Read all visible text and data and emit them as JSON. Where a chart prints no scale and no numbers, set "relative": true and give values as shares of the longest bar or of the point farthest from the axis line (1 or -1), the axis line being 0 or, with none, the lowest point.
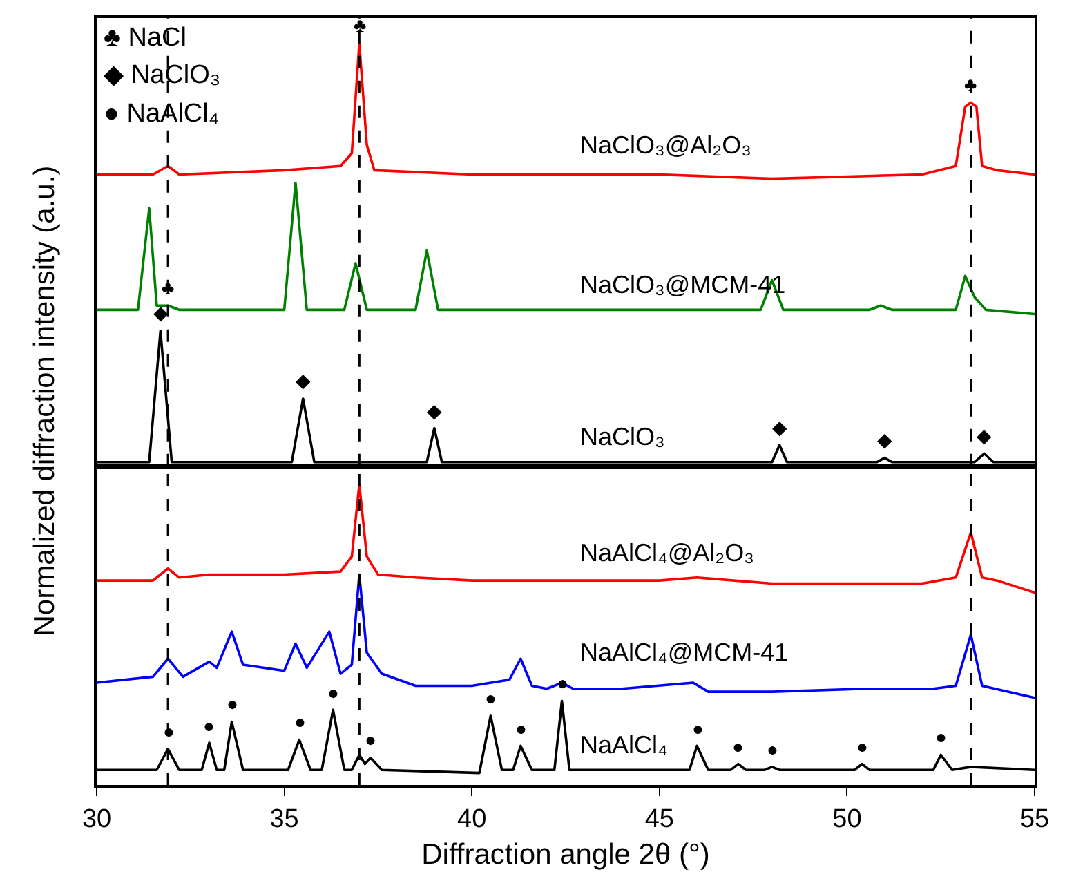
{
  "chart_data": [
    {
      "type": "line",
      "relative": true,
      "xlim": [
        30,
        55
      ],
      "tick_labels": false,
      "grid": false,
      "legend": false,
      "line_style": "solid",
      "ylabel": "Normalized diffraction intensity (a.u.)",
      "series": [
        {
          "name": "NaClO₃@Al₂O₃",
          "color": "#ff0000",
          "x": [
            30,
            31.5,
            31.9,
            32.2,
            35,
            36.5,
            36.8,
            37.0,
            37.2,
            37.4,
            40,
            45,
            48,
            52,
            52.9,
            53.15,
            53.3,
            53.45,
            53.6,
            54,
            55
          ],
          "values": [
            0.69,
            0.69,
            0.71,
            0.69,
            0.7,
            0.71,
            0.74,
            1.0,
            0.76,
            0.7,
            0.69,
            0.69,
            0.68,
            0.69,
            0.71,
            0.85,
            0.86,
            0.85,
            0.71,
            0.7,
            0.69
          ]
        },
        {
          "name": "NaClO₃@MCM-41",
          "color": "#008000",
          "x": [
            30,
            31.1,
            31.4,
            31.6,
            31.9,
            32.2,
            35.0,
            35.3,
            35.6,
            36.6,
            36.9,
            37.2,
            38.5,
            38.8,
            39.1,
            40,
            45,
            47.7,
            48.0,
            48.3,
            50.6,
            50.9,
            51.2,
            52.9,
            53.15,
            53.4,
            53.7,
            55
          ],
          "values": [
            0.37,
            0.37,
            0.61,
            0.38,
            0.38,
            0.37,
            0.37,
            0.67,
            0.37,
            0.37,
            0.48,
            0.37,
            0.37,
            0.51,
            0.37,
            0.37,
            0.37,
            0.37,
            0.44,
            0.37,
            0.37,
            0.38,
            0.37,
            0.37,
            0.45,
            0.4,
            0.37,
            0.36
          ]
        },
        {
          "name": "NaClO₃",
          "color": "#000000",
          "x": [
            30,
            31.4,
            31.7,
            32.0,
            35.2,
            35.5,
            35.8,
            38.8,
            39.0,
            39.2,
            48.0,
            48.2,
            48.4,
            50.8,
            51.0,
            51.2,
            53.4,
            53.66,
            53.9,
            55
          ],
          "values": [
            0.01,
            0.01,
            0.32,
            0.01,
            0.01,
            0.16,
            0.01,
            0.01,
            0.09,
            0.01,
            0.01,
            0.05,
            0.01,
            0.01,
            0.02,
            0.01,
            0.01,
            0.03,
            0.01,
            0.01
          ]
        }
      ],
      "ref_lines": [
        {
          "axis": "x",
          "value": 31.9,
          "color": "#000000",
          "line_style": "dashed"
        },
        {
          "axis": "x",
          "value": 37.0,
          "color": "#000000",
          "line_style": "dashed"
        },
        {
          "axis": "x",
          "value": 53.3,
          "color": "#000000",
          "line_style": "dashed"
        }
      ],
      "annotations": [
        "♣ NaCl",
        "◆ NaClO₃",
        "● NaAlCl₄",
        {
          "text": "♣",
          "x": 31.9,
          "y": 0.38
        },
        {
          "text": "♣",
          "x": 37.0,
          "y": 1.0
        },
        {
          "text": "♣",
          "x": 53.3,
          "y": 0.86
        },
        {
          "text": "◆",
          "x": 31.7,
          "y": 0.32
        },
        {
          "text": "◆",
          "x": 35.5,
          "y": 0.16
        },
        {
          "text": "◆",
          "x": 39.0,
          "y": 0.09
        },
        {
          "text": "◆",
          "x": 48.2,
          "y": 0.05
        },
        {
          "text": "◆",
          "x": 51.0,
          "y": 0.02
        },
        {
          "text": "◆",
          "x": 53.66,
          "y": 0.03
        }
      ]
    },
    {
      "type": "line",
      "relative": true,
      "xlim": [
        30,
        55
      ],
      "xticks": [
        30,
        35,
        40,
        45,
        50,
        55
      ],
      "tick_labels": "x",
      "grid": false,
      "legend": false,
      "line_style": "solid",
      "xlabel": "Diffraction angle 2θ (°)",
      "series": [
        {
          "name": "NaAlCl₄@Al₂O₃",
          "color": "#ff0000",
          "x": [
            30,
            31.5,
            31.9,
            32.2,
            33,
            34,
            35,
            36.5,
            36.8,
            37.0,
            37.2,
            37.5,
            38.5,
            40,
            45,
            46,
            48,
            52,
            52.9,
            53.3,
            53.6,
            54,
            55
          ],
          "values": [
            0.68,
            0.68,
            0.72,
            0.69,
            0.7,
            0.7,
            0.7,
            0.71,
            0.76,
            1.0,
            0.76,
            0.7,
            0.69,
            0.68,
            0.68,
            0.69,
            0.67,
            0.67,
            0.69,
            0.84,
            0.69,
            0.68,
            0.64
          ]
        },
        {
          "name": "NaAlCl₄@MCM-41",
          "color": "#0000ff",
          "x": [
            30,
            31.5,
            31.9,
            32.3,
            33.0,
            33.2,
            33.6,
            33.9,
            35.0,
            35.3,
            35.6,
            36.2,
            36.5,
            36.8,
            37.0,
            37.2,
            37.6,
            38.5,
            40,
            41.0,
            41.3,
            41.6,
            42.0,
            42.4,
            42.7,
            44,
            45.9,
            46.3,
            48,
            50.5,
            52.3,
            52.9,
            53.3,
            53.6,
            55
          ],
          "values": [
            0.34,
            0.36,
            0.42,
            0.36,
            0.41,
            0.39,
            0.51,
            0.4,
            0.38,
            0.47,
            0.39,
            0.51,
            0.37,
            0.4,
            0.7,
            0.44,
            0.37,
            0.33,
            0.33,
            0.35,
            0.42,
            0.33,
            0.32,
            0.34,
            0.32,
            0.32,
            0.34,
            0.31,
            0.31,
            0.32,
            0.32,
            0.33,
            0.5,
            0.33,
            0.29
          ]
        },
        {
          "name": "NaAlCl₄",
          "color": "#000000",
          "x": [
            30,
            31.6,
            31.9,
            32.2,
            32.8,
            33.0,
            33.2,
            33.4,
            33.6,
            33.9,
            35.1,
            35.4,
            35.7,
            36.0,
            36.3,
            36.6,
            36.8,
            37.0,
            37.15,
            37.3,
            37.6,
            40.2,
            40.5,
            40.8,
            41.1,
            41.3,
            41.6,
            42.2,
            42.4,
            42.6,
            45.8,
            46.0,
            46.3,
            46.9,
            47.1,
            47.3,
            47.8,
            48.0,
            48.2,
            50.2,
            50.4,
            50.6,
            52.3,
            52.5,
            52.8,
            53.3,
            55
          ],
          "values": [
            0.05,
            0.05,
            0.12,
            0.05,
            0.05,
            0.14,
            0.05,
            0.05,
            0.21,
            0.05,
            0.05,
            0.15,
            0.05,
            0.05,
            0.25,
            0.05,
            0.05,
            0.1,
            0.07,
            0.09,
            0.05,
            0.04,
            0.23,
            0.05,
            0.05,
            0.13,
            0.05,
            0.05,
            0.28,
            0.05,
            0.05,
            0.13,
            0.05,
            0.05,
            0.07,
            0.05,
            0.05,
            0.06,
            0.05,
            0.05,
            0.07,
            0.05,
            0.05,
            0.1,
            0.05,
            0.06,
            0.05
          ]
        }
      ],
      "ref_lines": [
        {
          "axis": "x",
          "value": 31.9,
          "color": "#000000",
          "line_style": "dashed"
        },
        {
          "axis": "x",
          "value": 37.0,
          "color": "#000000",
          "line_style": "dashed"
        },
        {
          "axis": "x",
          "value": 53.3,
          "color": "#000000",
          "line_style": "dashed"
        }
      ],
      "annotations": [
        {
          "text": "●",
          "x": 31.9,
          "y": 0.12
        },
        {
          "text": "●",
          "x": 33.0,
          "y": 0.14
        },
        {
          "text": "●",
          "x": 33.6,
          "y": 0.21
        },
        {
          "text": "●",
          "x": 35.4,
          "y": 0.15
        },
        {
          "text": "●",
          "x": 36.3,
          "y": 0.25
        },
        {
          "text": "●",
          "x": 37.3,
          "y": 0.09
        },
        {
          "text": "●",
          "x": 40.5,
          "y": 0.23
        },
        {
          "text": "●",
          "x": 41.3,
          "y": 0.13
        },
        {
          "text": "●",
          "x": 42.4,
          "y": 0.28
        },
        {
          "text": "●",
          "x": 46.0,
          "y": 0.13
        },
        {
          "text": "●",
          "x": 47.1,
          "y": 0.07
        },
        {
          "text": "●",
          "x": 48.0,
          "y": 0.06
        },
        {
          "text": "●",
          "x": 50.4,
          "y": 0.07
        },
        {
          "text": "●",
          "x": 52.5,
          "y": 0.1
        }
      ]
    }
  ]
}
